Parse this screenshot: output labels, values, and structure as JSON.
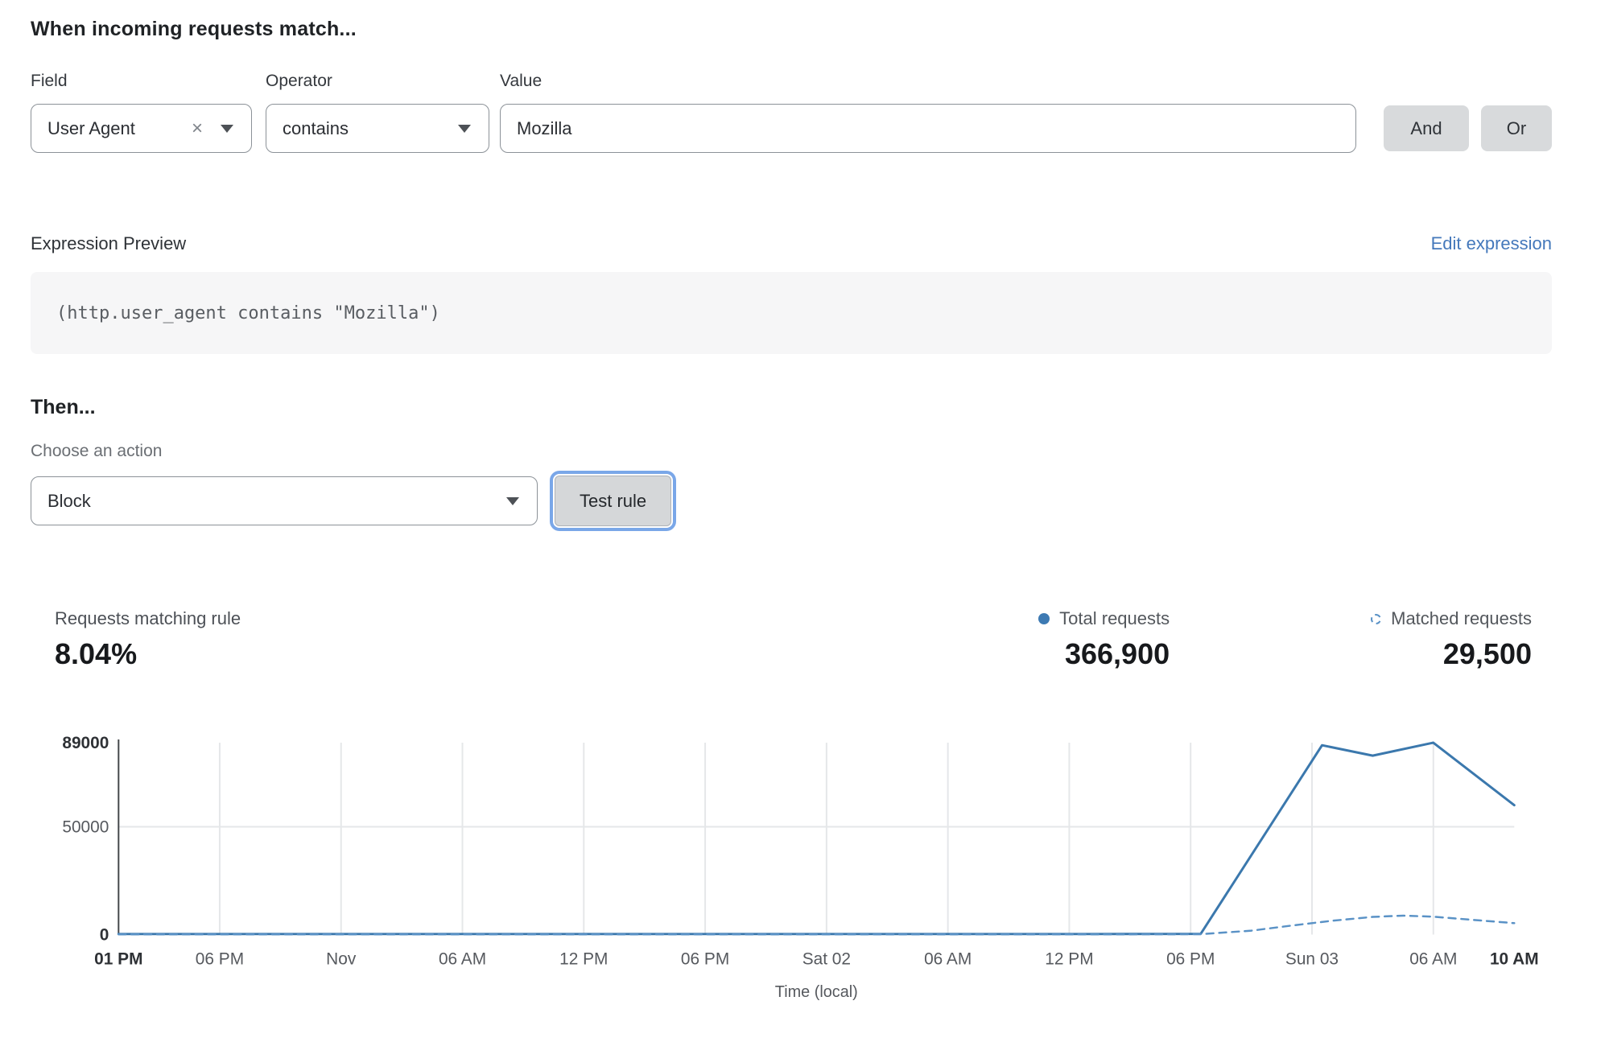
{
  "rule_builder": {
    "title": "When incoming requests match...",
    "field": {
      "label": "Field",
      "value": "User Agent"
    },
    "operator": {
      "label": "Operator",
      "value": "contains"
    },
    "value": {
      "label": "Value",
      "value": "Mozilla"
    },
    "and_label": "And",
    "or_label": "Or"
  },
  "icons": {
    "clear": "×"
  },
  "expression": {
    "label": "Expression Preview",
    "edit_link": "Edit expression",
    "code": "(http.user_agent contains \"Mozilla\")"
  },
  "action": {
    "title": "Then...",
    "label": "Choose an action",
    "value": "Block",
    "test_button": "Test rule"
  },
  "stats": {
    "match_label": "Requests matching rule",
    "match_value": "8.04%",
    "total_label": "Total requests",
    "total_value": "366,900",
    "matched_label": "Matched requests",
    "matched_value": "29,500"
  },
  "chart_data": {
    "type": "line",
    "xlabel": "Time (local)",
    "ylabel": "",
    "ylim": [
      0,
      89000
    ],
    "x_range_hours": [
      0,
      69
    ],
    "grid": true,
    "legend_position": "top-right",
    "colors": {
      "grid": "#e5e7e9",
      "axis": "#44474b",
      "tick": "#56595e",
      "tick_bold": "#2e3135"
    },
    "yticks": [
      {
        "value": 0,
        "label": "0",
        "bold": true
      },
      {
        "value": 50000,
        "label": "50000",
        "bold": false
      },
      {
        "value": 89000,
        "label": "89000",
        "bold": true
      }
    ],
    "xticks": [
      {
        "h": 0,
        "label": "01 PM",
        "bold": true
      },
      {
        "h": 5,
        "label": "06 PM",
        "bold": false
      },
      {
        "h": 11,
        "label": "Nov",
        "bold": false
      },
      {
        "h": 17,
        "label": "06 AM",
        "bold": false
      },
      {
        "h": 23,
        "label": "12 PM",
        "bold": false
      },
      {
        "h": 29,
        "label": "06 PM",
        "bold": false
      },
      {
        "h": 35,
        "label": "Sat 02",
        "bold": false
      },
      {
        "h": 41,
        "label": "06 AM",
        "bold": false
      },
      {
        "h": 47,
        "label": "12 PM",
        "bold": false
      },
      {
        "h": 53,
        "label": "06 PM",
        "bold": false
      },
      {
        "h": 59,
        "label": "Sun 03",
        "bold": false
      },
      {
        "h": 65,
        "label": "06 AM",
        "bold": false
      },
      {
        "h": 69,
        "label": "10 AM",
        "bold": true
      }
    ],
    "series": [
      {
        "name": "Total requests",
        "style": "solid",
        "color": "#3b78ad",
        "points": [
          [
            0,
            250
          ],
          [
            6,
            250
          ],
          [
            12,
            250
          ],
          [
            18,
            250
          ],
          [
            24,
            250
          ],
          [
            30,
            250
          ],
          [
            36,
            250
          ],
          [
            42,
            250
          ],
          [
            48,
            250
          ],
          [
            53.5,
            350
          ],
          [
            59.5,
            87800
          ],
          [
            62,
            83000
          ],
          [
            65,
            89000
          ],
          [
            69,
            60000
          ]
        ]
      },
      {
        "name": "Matched requests",
        "style": "dashed",
        "color": "#5a92c6",
        "points": [
          [
            0,
            120
          ],
          [
            10,
            120
          ],
          [
            20,
            120
          ],
          [
            30,
            120
          ],
          [
            40,
            120
          ],
          [
            50,
            120
          ],
          [
            53.5,
            200
          ],
          [
            56,
            1800
          ],
          [
            58,
            4200
          ],
          [
            60,
            6400
          ],
          [
            62,
            8200
          ],
          [
            63.5,
            8800
          ],
          [
            65,
            8300
          ],
          [
            67,
            6800
          ],
          [
            69,
            5300
          ]
        ]
      }
    ]
  }
}
